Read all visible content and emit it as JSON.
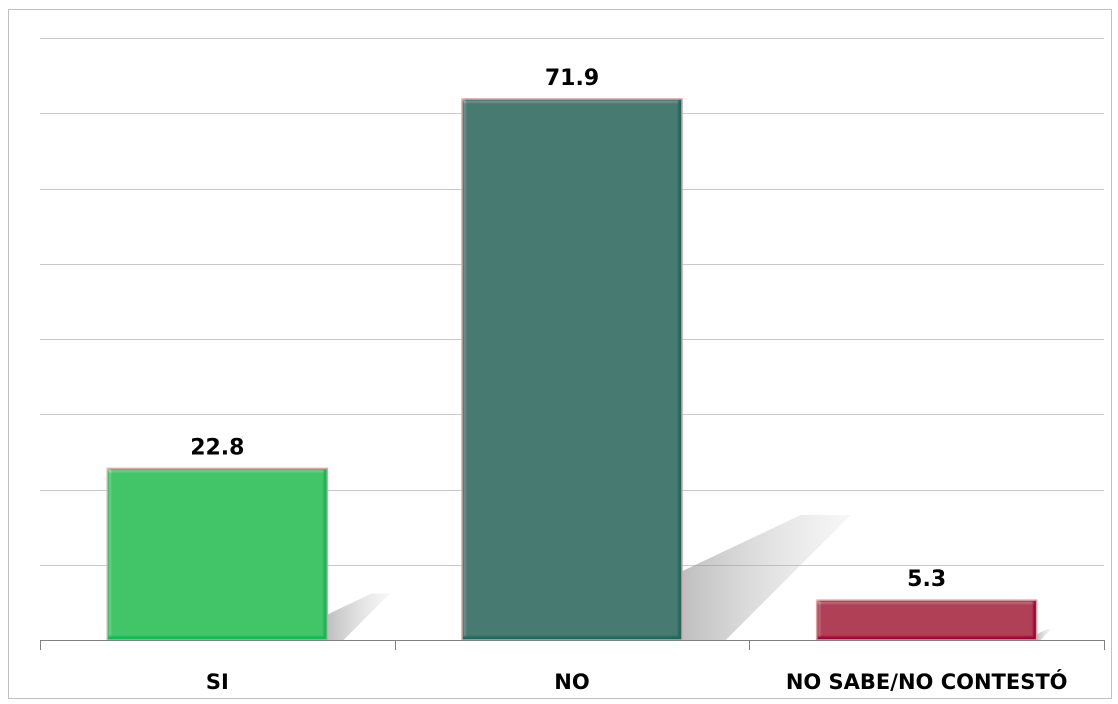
{
  "chart_data": {
    "type": "bar",
    "categories": [
      "SI",
      "NO",
      "NO SABE/NO CONTESTÓ"
    ],
    "values": [
      22.8,
      71.9,
      5.3
    ],
    "value_labels": [
      "22.8",
      "71.9",
      "5.3"
    ],
    "ylim": [
      0,
      80
    ],
    "grid": true,
    "gridline_step": 10,
    "legend": "none",
    "bar_colors": [
      "#08bb55",
      "#1e6b5e",
      "#a5063a"
    ],
    "bar_border_color": "#d9a3a3"
  }
}
